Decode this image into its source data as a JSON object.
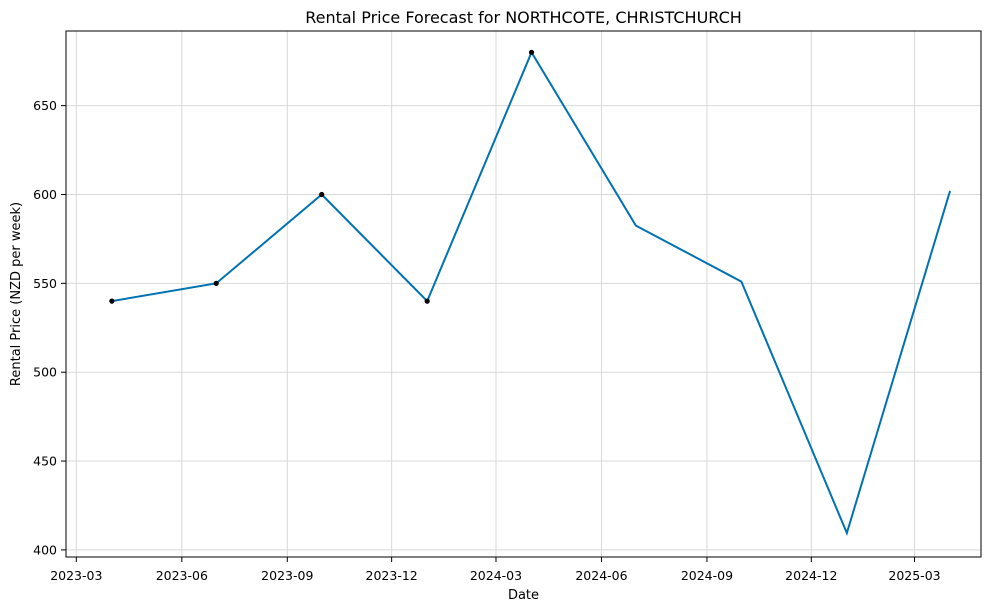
{
  "chart_data": {
    "type": "line",
    "title": "Rental Price Forecast for NORTHCOTE, CHRISTCHURCH",
    "xlabel": "Date",
    "ylabel": "Rental Price (NZD per week)",
    "x_ticks": [
      "2023-03",
      "2023-06",
      "2023-09",
      "2023-12",
      "2024-03",
      "2024-06",
      "2024-09",
      "2024-12",
      "2025-03"
    ],
    "y_ticks": [
      400,
      450,
      500,
      550,
      600,
      650
    ],
    "xlim": [
      "2023-02-20",
      "2025-04-28"
    ],
    "ylim": [
      396,
      692
    ],
    "grid": true,
    "colors": {
      "forecast_line": "#0072B2",
      "observed_points": "#000000"
    },
    "series": [
      {
        "kind": "forecast-line",
        "x": [
          "2023-04-01",
          "2023-07-01",
          "2023-10-01",
          "2024-01-01",
          "2024-04-01",
          "2024-07-01",
          "2024-10-01",
          "2025-01-01",
          "2025-04-01"
        ],
        "y": [
          540,
          550,
          600,
          540,
          680,
          582.5,
          551,
          409.5,
          602
        ]
      },
      {
        "kind": "observed-points",
        "x": [
          "2023-04-01",
          "2023-07-01",
          "2023-10-01",
          "2024-01-01",
          "2024-04-01"
        ],
        "y": [
          540,
          550,
          600,
          540,
          680
        ]
      }
    ]
  }
}
